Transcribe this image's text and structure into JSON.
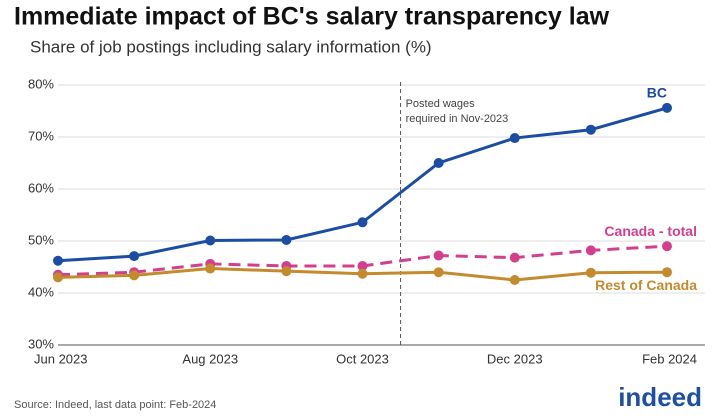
{
  "chart_data": {
    "type": "line",
    "title": "Immediate impact of BC's salary transparency law",
    "subtitle": "Share of job postings including salary information (%)",
    "categories": [
      "Jun 2023",
      null,
      "Aug 2023",
      null,
      "Oct 2023",
      null,
      "Dec 2023",
      null,
      "Feb 2024"
    ],
    "series": [
      {
        "name": "BC",
        "color": "#1b4ea3",
        "dash": false,
        "values": [
          46.2,
          47.1,
          50.1,
          50.2,
          53.6,
          65.0,
          69.8,
          71.4,
          75.6
        ]
      },
      {
        "name": "Canada - total",
        "color": "#d43f8d",
        "dash": true,
        "values": [
          43.5,
          44.0,
          45.6,
          45.2,
          45.2,
          47.2,
          46.8,
          48.2,
          49.0
        ]
      },
      {
        "name": "Rest of Canada",
        "color": "#c48b2e",
        "dash": false,
        "values": [
          43.0,
          43.4,
          44.7,
          44.2,
          43.7,
          44.0,
          42.5,
          43.9,
          44.0
        ]
      }
    ],
    "ylim": [
      30,
      80
    ],
    "yticks": [
      {
        "value": 30,
        "label": "30%"
      },
      {
        "value": 40,
        "label": "40%"
      },
      {
        "value": 50,
        "label": "50%"
      },
      {
        "value": 60,
        "label": "60%"
      },
      {
        "value": 70,
        "label": "70%"
      },
      {
        "value": 80,
        "label": "80%"
      }
    ],
    "grid": true,
    "annotation": [
      "Posted wages",
      "required in Nov-2023"
    ],
    "source": "Source: Indeed, last data point: Feb-2024",
    "logo": "indeed"
  }
}
